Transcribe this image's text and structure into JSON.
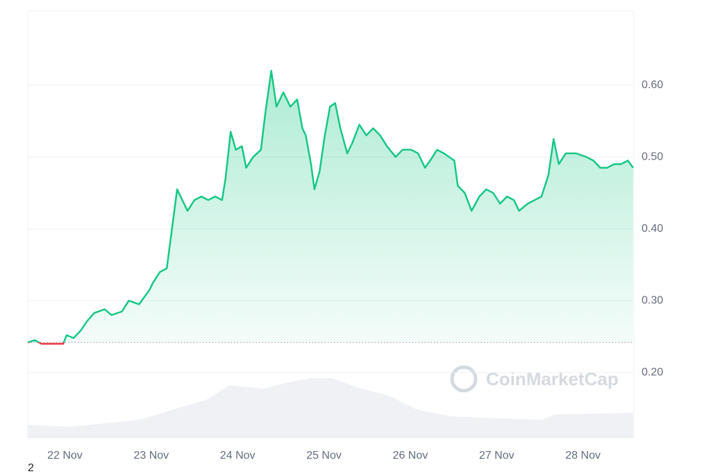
{
  "chart_data": {
    "type": "line",
    "watermark": "CoinMarketCap",
    "footnote": "2",
    "xlim": [
      21.57,
      28.59
    ],
    "ylim": [
      0.11,
      0.703
    ],
    "xticks": [
      {
        "value": 22,
        "label": "22 Nov"
      },
      {
        "value": 23,
        "label": "23 Nov"
      },
      {
        "value": 24,
        "label": "24 Nov"
      },
      {
        "value": 25,
        "label": "25 Nov"
      },
      {
        "value": 26,
        "label": "26 Nov"
      },
      {
        "value": 27,
        "label": "27 Nov"
      },
      {
        "value": 28,
        "label": "28 Nov"
      }
    ],
    "yticks": [
      {
        "value": 0.2,
        "label": "0.20"
      },
      {
        "value": 0.3,
        "label": "0.30"
      },
      {
        "value": 0.4,
        "label": "0.40"
      },
      {
        "value": 0.5,
        "label": "0.50"
      },
      {
        "value": 0.6,
        "label": "0.60"
      }
    ],
    "grid": true,
    "baseline": 0.242,
    "up_color": "#16c784",
    "down_color": "#ea3943",
    "x": [
      21.57,
      21.65,
      21.73,
      21.86,
      21.98,
      22.02,
      22.1,
      22.18,
      22.26,
      22.34,
      22.46,
      22.54,
      22.66,
      22.74,
      22.86,
      22.98,
      23.02,
      23.1,
      23.18,
      23.24,
      23.3,
      23.36,
      23.42,
      23.5,
      23.58,
      23.66,
      23.74,
      23.82,
      23.86,
      23.92,
      23.98,
      24.05,
      24.1,
      24.18,
      24.27,
      24.32,
      24.39,
      24.45,
      24.53,
      24.61,
      24.69,
      24.75,
      24.79,
      24.85,
      24.89,
      24.95,
      25.01,
      25.07,
      25.13,
      25.19,
      25.27,
      25.33,
      25.41,
      25.49,
      25.57,
      25.65,
      25.73,
      25.83,
      25.91,
      26.01,
      26.09,
      26.17,
      26.23,
      26.31,
      26.39,
      26.51,
      26.55,
      26.63,
      26.71,
      26.8,
      26.88,
      26.96,
      27.04,
      27.12,
      27.2,
      27.26,
      27.36,
      27.44,
      27.52,
      27.6,
      27.66,
      27.72,
      27.8,
      27.92,
      28.04,
      28.12,
      28.2,
      28.28,
      28.36,
      28.44,
      28.52,
      28.58
    ],
    "values": [
      0.242,
      0.245,
      0.24,
      0.24,
      0.24,
      0.252,
      0.248,
      0.258,
      0.272,
      0.283,
      0.288,
      0.28,
      0.285,
      0.3,
      0.295,
      0.315,
      0.325,
      0.34,
      0.345,
      0.4,
      0.455,
      0.44,
      0.425,
      0.44,
      0.445,
      0.44,
      0.445,
      0.44,
      0.47,
      0.535,
      0.51,
      0.515,
      0.485,
      0.5,
      0.51,
      0.56,
      0.62,
      0.57,
      0.59,
      0.57,
      0.58,
      0.54,
      0.53,
      0.49,
      0.455,
      0.48,
      0.53,
      0.57,
      0.575,
      0.54,
      0.505,
      0.52,
      0.545,
      0.53,
      0.54,
      0.53,
      0.515,
      0.5,
      0.51,
      0.51,
      0.505,
      0.485,
      0.495,
      0.51,
      0.505,
      0.495,
      0.46,
      0.45,
      0.425,
      0.445,
      0.455,
      0.45,
      0.435,
      0.445,
      0.44,
      0.425,
      0.435,
      0.44,
      0.445,
      0.475,
      0.525,
      0.49,
      0.505,
      0.505,
      0.5,
      0.495,
      0.485,
      0.485,
      0.49,
      0.49,
      0.495,
      0.485
    ],
    "volume": {
      "color": "#eff1f4",
      "x": [
        21.57,
        22.05,
        22.46,
        22.86,
        23.26,
        23.66,
        23.9,
        24.3,
        24.62,
        24.86,
        25.1,
        25.43,
        25.75,
        26.07,
        26.47,
        26.88,
        27.52,
        27.68,
        28.58
      ],
      "values": [
        18,
        15,
        20,
        25,
        40,
        55,
        75,
        70,
        80,
        85,
        85,
        70,
        60,
        40,
        30,
        28,
        25,
        33,
        35
      ]
    }
  }
}
